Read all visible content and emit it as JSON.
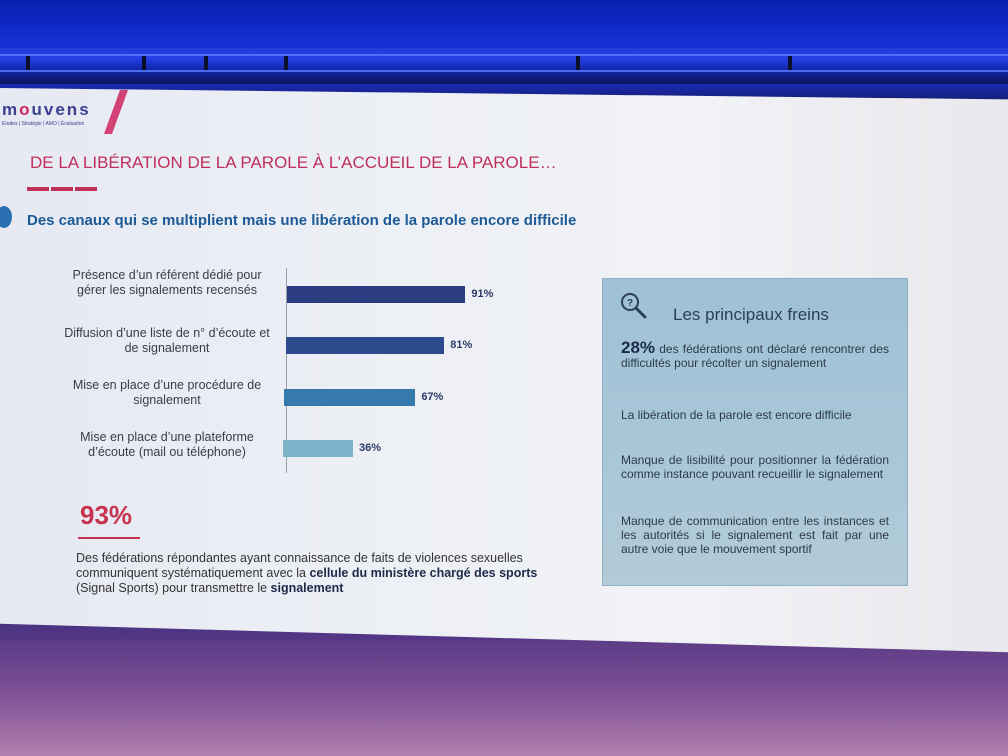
{
  "logo": {
    "word_start": "m",
    "word_dot": "o",
    "word_end": "uvens",
    "tagline": "Etudes | Stratégie | AMO | Évaluation"
  },
  "slide": {
    "title": "DE LA LIBÉRATION DE LA PAROLE À L’ACCUEIL DE LA PAROLE…",
    "subtitle": "Des canaux qui se multiplient mais une libération de la parole encore difficile"
  },
  "chart_data": {
    "type": "bar",
    "orientation": "horizontal",
    "categories": [
      "Présence d’un référent dédié pour gérer les signalements recensés",
      "Diffusion d’une liste de n° d’écoute et de signalement",
      "Mise en place d’une procédure de signalement",
      "Mise en place d’une plateforme d’écoute (mail ou téléphone)"
    ],
    "values": [
      91,
      81,
      67,
      36
    ],
    "value_labels": [
      "91%",
      "81%",
      "67%",
      "36%"
    ],
    "colors": [
      "#2b3d80",
      "#2d4a8c",
      "#3579ad",
      "#7eb2c8"
    ],
    "xlim": [
      0,
      100
    ],
    "grid": false
  },
  "stat": {
    "value": "93%",
    "text_part1": "Des fédérations répondantes ayant connaissance de faits de violences sexuelles communiquent systématiquement avec la ",
    "text_bold1": "cellule du ministère chargé des sports",
    "text_part2": " (Signal Sports) pour transmettre le ",
    "text_bold2": "signalement"
  },
  "panel": {
    "title": "Les principaux freins",
    "icon": "magnifier-question-icon",
    "item1_value": "28%",
    "item1_text": " des fédérations ont déclaré rencontrer des difficultés pour récolter un signalement",
    "item2": "La libération de la parole est encore difficile",
    "item3": "Manque de lisibilité pour positionner la fédération comme instance pouvant recueillir le signalement",
    "item4": "Manque de communication entre les instances et les autorités si le signalement est fait par une autre voie que le mouvement sportif"
  }
}
